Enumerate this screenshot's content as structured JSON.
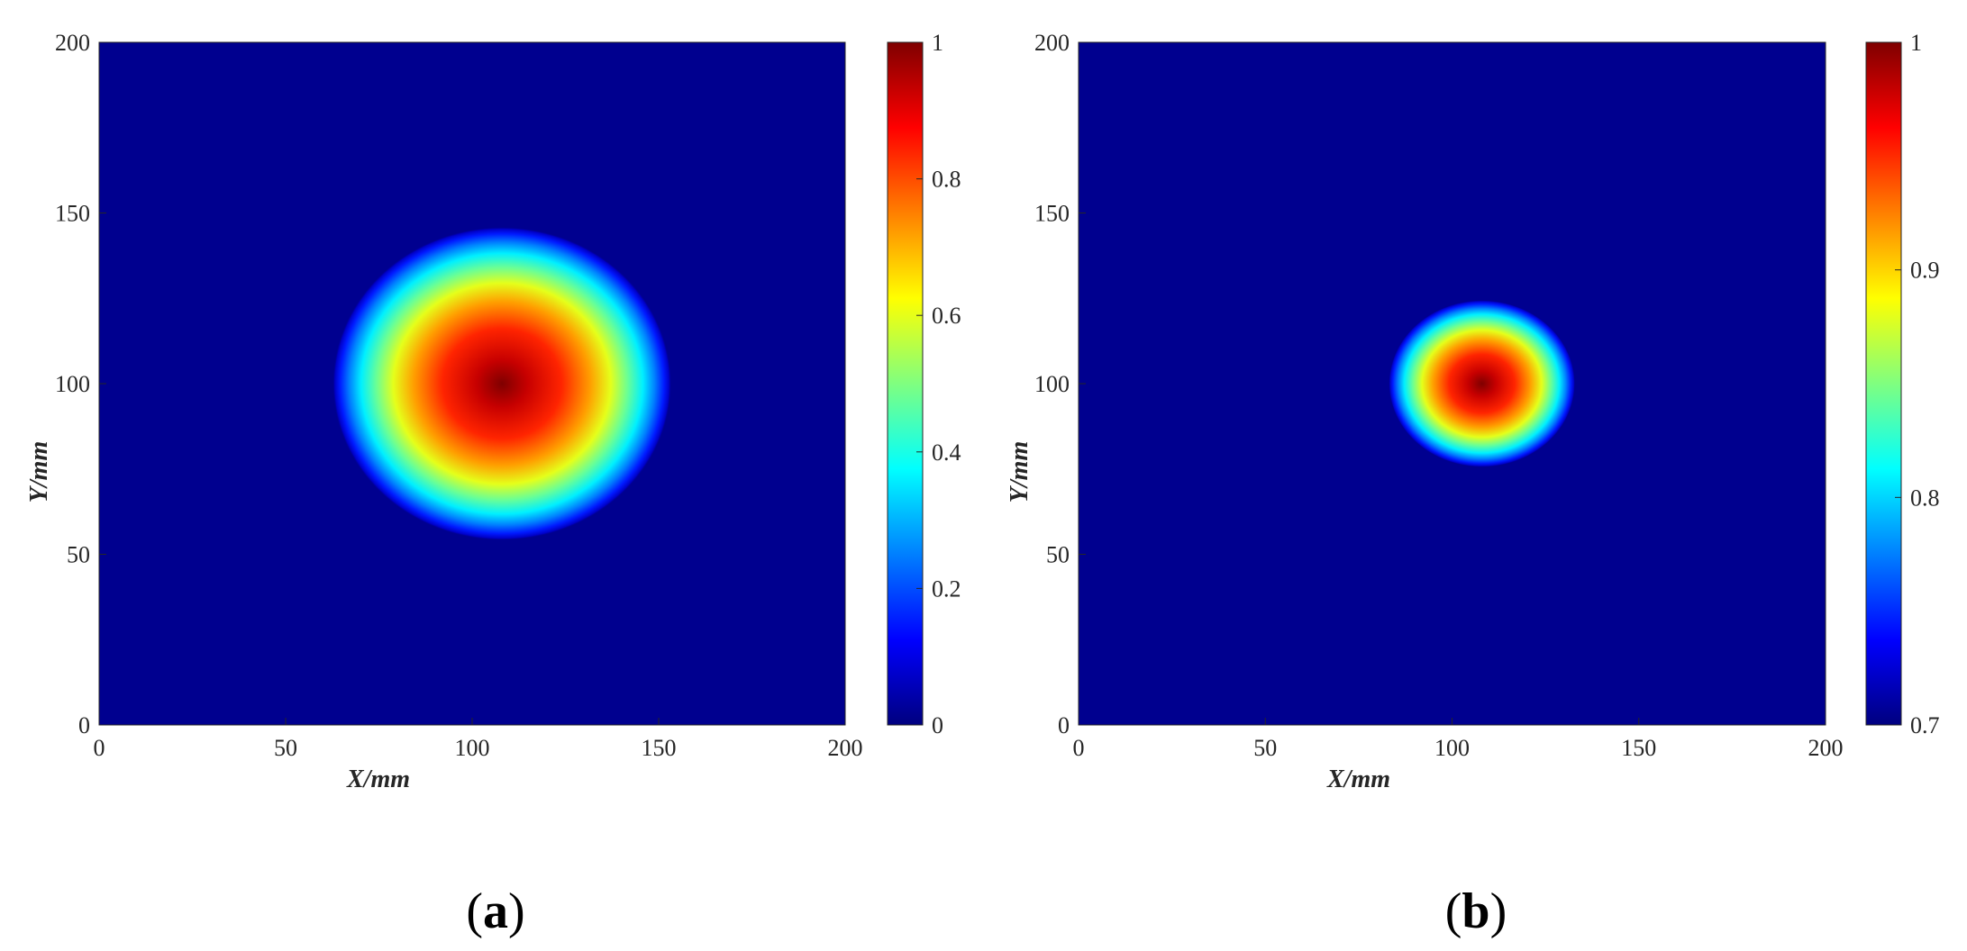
{
  "chart_data": [
    {
      "type": "heatmap",
      "panel_label": "(a)",
      "panel_letter": "a",
      "xlabel": "X/mm",
      "ylabel": "Y/mm",
      "xlim": [
        0,
        200
      ],
      "ylim": [
        0,
        200
      ],
      "xticks": [
        0,
        50,
        100,
        150,
        200
      ],
      "yticks": [
        0,
        50,
        100,
        150,
        200
      ],
      "colormap": "jet",
      "color_limits": [
        0,
        1
      ],
      "colorbar_ticks": [
        0,
        0.2,
        0.4,
        0.6,
        0.8,
        1
      ],
      "colorbar_tick_labels": [
        "0",
        "0.2",
        "0.4",
        "0.6",
        "0.8",
        "1"
      ],
      "peak": {
        "x": 108,
        "y": 100,
        "value": 1
      },
      "contour_extent": {
        "x_min": 62,
        "x_max": 153,
        "y_min": 53,
        "y_max": 145
      },
      "background_value": 0
    },
    {
      "type": "heatmap",
      "panel_label": "(b)",
      "panel_letter": "b",
      "xlabel": "X/mm",
      "ylabel": "Y/mm",
      "xlim": [
        0,
        200
      ],
      "ylim": [
        0,
        200
      ],
      "xticks": [
        0,
        50,
        100,
        150,
        200
      ],
      "yticks": [
        0,
        50,
        100,
        150,
        200
      ],
      "colormap": "jet",
      "color_limits": [
        0.7,
        1
      ],
      "colorbar_ticks": [
        0.7,
        0.8,
        0.9,
        1
      ],
      "colorbar_tick_labels": [
        "0.7",
        "0.8",
        "0.9",
        "1"
      ],
      "peak": {
        "x": 108,
        "y": 100,
        "value": 1
      },
      "contour_extent": {
        "x_min": 83,
        "x_max": 133,
        "y_min": 76,
        "y_max": 125
      },
      "background_value": 0.7
    }
  ],
  "colors": {
    "background_field": "#00008f",
    "axis_text": "#262626"
  }
}
